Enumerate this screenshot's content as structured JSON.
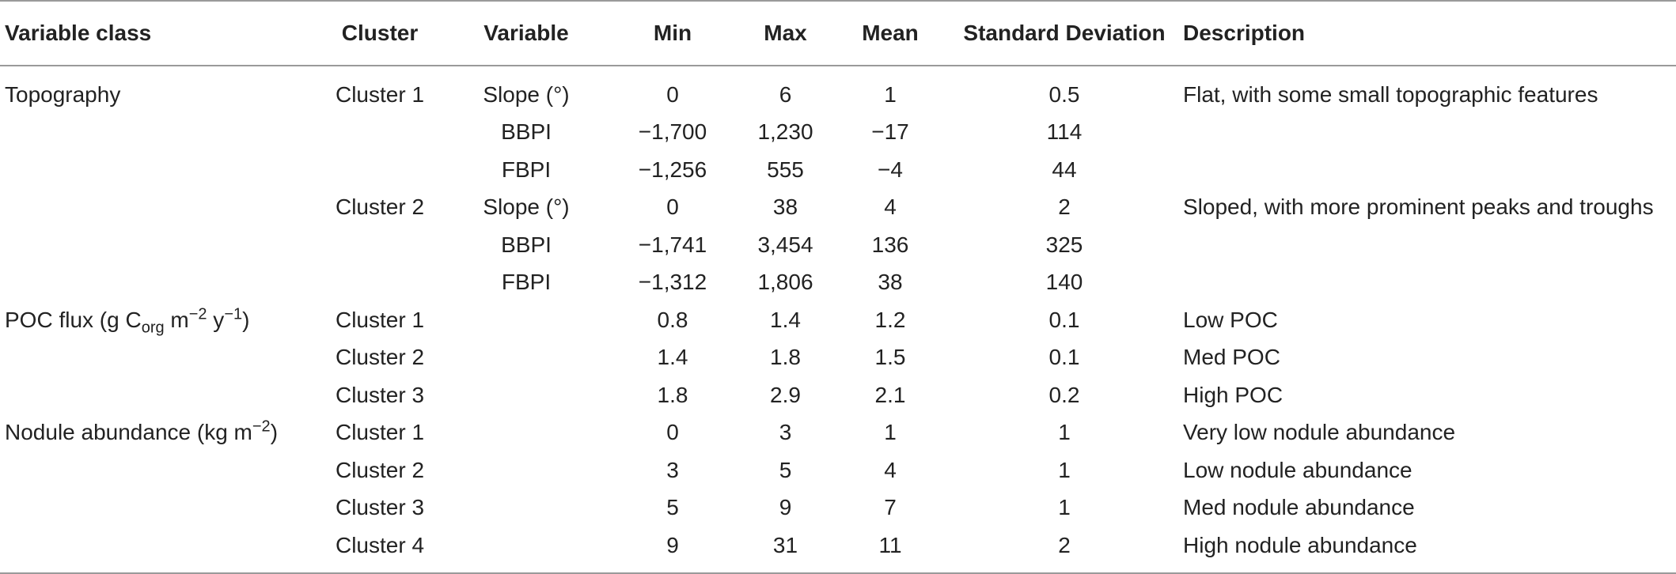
{
  "table": {
    "headers": [
      "Variable class",
      "Cluster",
      "Variable",
      "Min",
      "Max",
      "Mean",
      "Standard Deviation",
      "Description"
    ],
    "rows": [
      {
        "class": "Topography",
        "cluster": "Cluster 1",
        "variable": "Slope (°)",
        "min": "0",
        "max": "6",
        "mean": "1",
        "sd": "0.5",
        "description": "Flat, with some small topographic features"
      },
      {
        "class": "",
        "cluster": "",
        "variable": "BBPI",
        "min": "−1,700",
        "max": "1,230",
        "mean": "−17",
        "sd": "114",
        "description": ""
      },
      {
        "class": "",
        "cluster": "",
        "variable": "FBPI",
        "min": "−1,256",
        "max": "555",
        "mean": "−4",
        "sd": "44",
        "description": ""
      },
      {
        "class": "",
        "cluster": "Cluster 2",
        "variable": "Slope (°)",
        "min": "0",
        "max": "38",
        "mean": "4",
        "sd": "2",
        "description": "Sloped, with more prominent peaks and troughs"
      },
      {
        "class": "",
        "cluster": "",
        "variable": "BBPI",
        "min": "−1,741",
        "max": "3,454",
        "mean": "136",
        "sd": "325",
        "description": ""
      },
      {
        "class": "",
        "cluster": "",
        "variable": "FBPI",
        "min": "−1,312",
        "max": "1,806",
        "mean": "38",
        "sd": "140",
        "description": ""
      },
      {
        "class": "POC flux (g C",
        "class_sub": "org",
        "class_mid": " m",
        "class_sup1": "−2",
        "class_mid2": " y",
        "class_sup2": "−1",
        "class_end": ")",
        "cluster": "Cluster 1",
        "variable": "",
        "min": "0.8",
        "max": "1.4",
        "mean": "1.2",
        "sd": "0.1",
        "description": "Low POC"
      },
      {
        "class": "",
        "cluster": "Cluster 2",
        "variable": "",
        "min": "1.4",
        "max": "1.8",
        "mean": "1.5",
        "sd": "0.1",
        "description": "Med POC"
      },
      {
        "class": "",
        "cluster": "Cluster 3",
        "variable": "",
        "min": "1.8",
        "max": "2.9",
        "mean": "2.1",
        "sd": "0.2",
        "description": "High POC"
      },
      {
        "class": "Nodule abundance (kg m",
        "class_sup1": "−2",
        "class_end": ")",
        "cluster": "Cluster 1",
        "variable": "",
        "min": "0",
        "max": "3",
        "mean": "1",
        "sd": "1",
        "description": "Very low nodule abundance"
      },
      {
        "class": "",
        "cluster": "Cluster 2",
        "variable": "",
        "min": "3",
        "max": "5",
        "mean": "4",
        "sd": "1",
        "description": "Low nodule abundance"
      },
      {
        "class": "",
        "cluster": "Cluster 3",
        "variable": "",
        "min": "5",
        "max": "9",
        "mean": "7",
        "sd": "1",
        "description": "Med nodule abundance"
      },
      {
        "class": "",
        "cluster": "Cluster 4",
        "variable": "",
        "min": "9",
        "max": "31",
        "mean": "11",
        "sd": "2",
        "description": "High nodule abundance"
      }
    ]
  }
}
